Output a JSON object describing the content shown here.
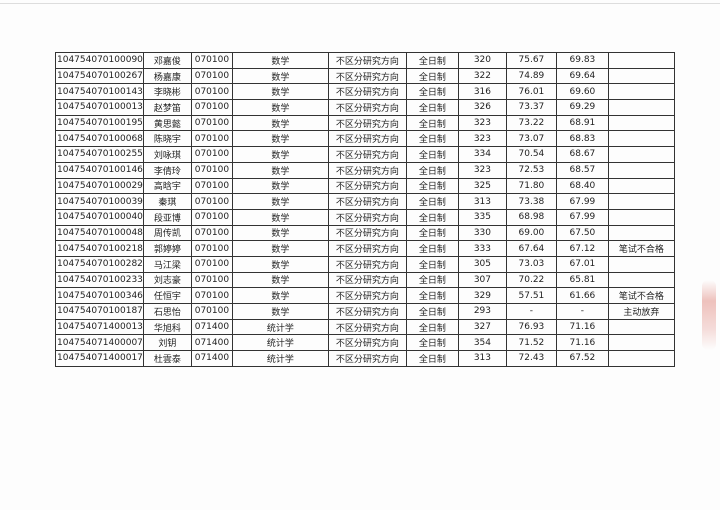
{
  "rows": [
    [
      "104754070100090",
      "邓嘉俊",
      "070100",
      "数学",
      "不区分研究方向",
      "全日制",
      "320",
      "75.67",
      "69.83",
      ""
    ],
    [
      "104754070100267",
      "杨嘉康",
      "070100",
      "数学",
      "不区分研究方向",
      "全日制",
      "322",
      "74.89",
      "69.64",
      ""
    ],
    [
      "104754070100143",
      "李晓彬",
      "070100",
      "数学",
      "不区分研究方向",
      "全日制",
      "316",
      "76.01",
      "69.60",
      ""
    ],
    [
      "104754070100013",
      "赵梦笛",
      "070100",
      "数学",
      "不区分研究方向",
      "全日制",
      "326",
      "73.37",
      "69.29",
      ""
    ],
    [
      "104754070100195",
      "黄思懿",
      "070100",
      "数学",
      "不区分研究方向",
      "全日制",
      "323",
      "73.22",
      "68.91",
      ""
    ],
    [
      "104754070100068",
      "陈晓宇",
      "070100",
      "数学",
      "不区分研究方向",
      "全日制",
      "323",
      "73.07",
      "68.83",
      ""
    ],
    [
      "104754070100255",
      "刘咏琪",
      "070100",
      "数学",
      "不区分研究方向",
      "全日制",
      "334",
      "70.54",
      "68.67",
      ""
    ],
    [
      "104754070100146",
      "李倩玲",
      "070100",
      "数学",
      "不区分研究方向",
      "全日制",
      "323",
      "72.53",
      "68.57",
      ""
    ],
    [
      "104754070100029",
      "高晗宇",
      "070100",
      "数学",
      "不区分研究方向",
      "全日制",
      "325",
      "71.80",
      "68.40",
      ""
    ],
    [
      "104754070100039",
      "秦琪",
      "070100",
      "数学",
      "不区分研究方向",
      "全日制",
      "313",
      "73.38",
      "67.99",
      ""
    ],
    [
      "104754070100040",
      "段亚博",
      "070100",
      "数学",
      "不区分研究方向",
      "全日制",
      "335",
      "68.98",
      "67.99",
      ""
    ],
    [
      "104754070100048",
      "周传凯",
      "070100",
      "数学",
      "不区分研究方向",
      "全日制",
      "330",
      "69.00",
      "67.50",
      ""
    ],
    [
      "104754070100218",
      "郭婷婷",
      "070100",
      "数学",
      "不区分研究方向",
      "全日制",
      "333",
      "67.64",
      "67.12",
      "笔试不合格"
    ],
    [
      "104754070100282",
      "马江梁",
      "070100",
      "数学",
      "不区分研究方向",
      "全日制",
      "305",
      "73.03",
      "67.01",
      ""
    ],
    [
      "104754070100233",
      "刘志豪",
      "070100",
      "数学",
      "不区分研究方向",
      "全日制",
      "307",
      "70.22",
      "65.81",
      ""
    ],
    [
      "104754070100346",
      "任恒宇",
      "070100",
      "数学",
      "不区分研究方向",
      "全日制",
      "329",
      "57.51",
      "61.66",
      "笔试不合格"
    ],
    [
      "104754070100187",
      "石思怡",
      "070100",
      "数学",
      "不区分研究方向",
      "全日制",
      "293",
      "-",
      "-",
      "主动放弃"
    ],
    [
      "104754071400013",
      "华旭科",
      "071400",
      "统计学",
      "不区分研究方向",
      "全日制",
      "327",
      "76.93",
      "71.16",
      ""
    ],
    [
      "104754071400007",
      "刘钥",
      "071400",
      "统计学",
      "不区分研究方向",
      "全日制",
      "354",
      "71.52",
      "71.16",
      ""
    ],
    [
      "104754071400017",
      "杜雲泰",
      "071400",
      "统计学",
      "不区分研究方向",
      "全日制",
      "313",
      "72.43",
      "67.52",
      ""
    ]
  ],
  "colors": {
    "seal": "#dc786e"
  }
}
